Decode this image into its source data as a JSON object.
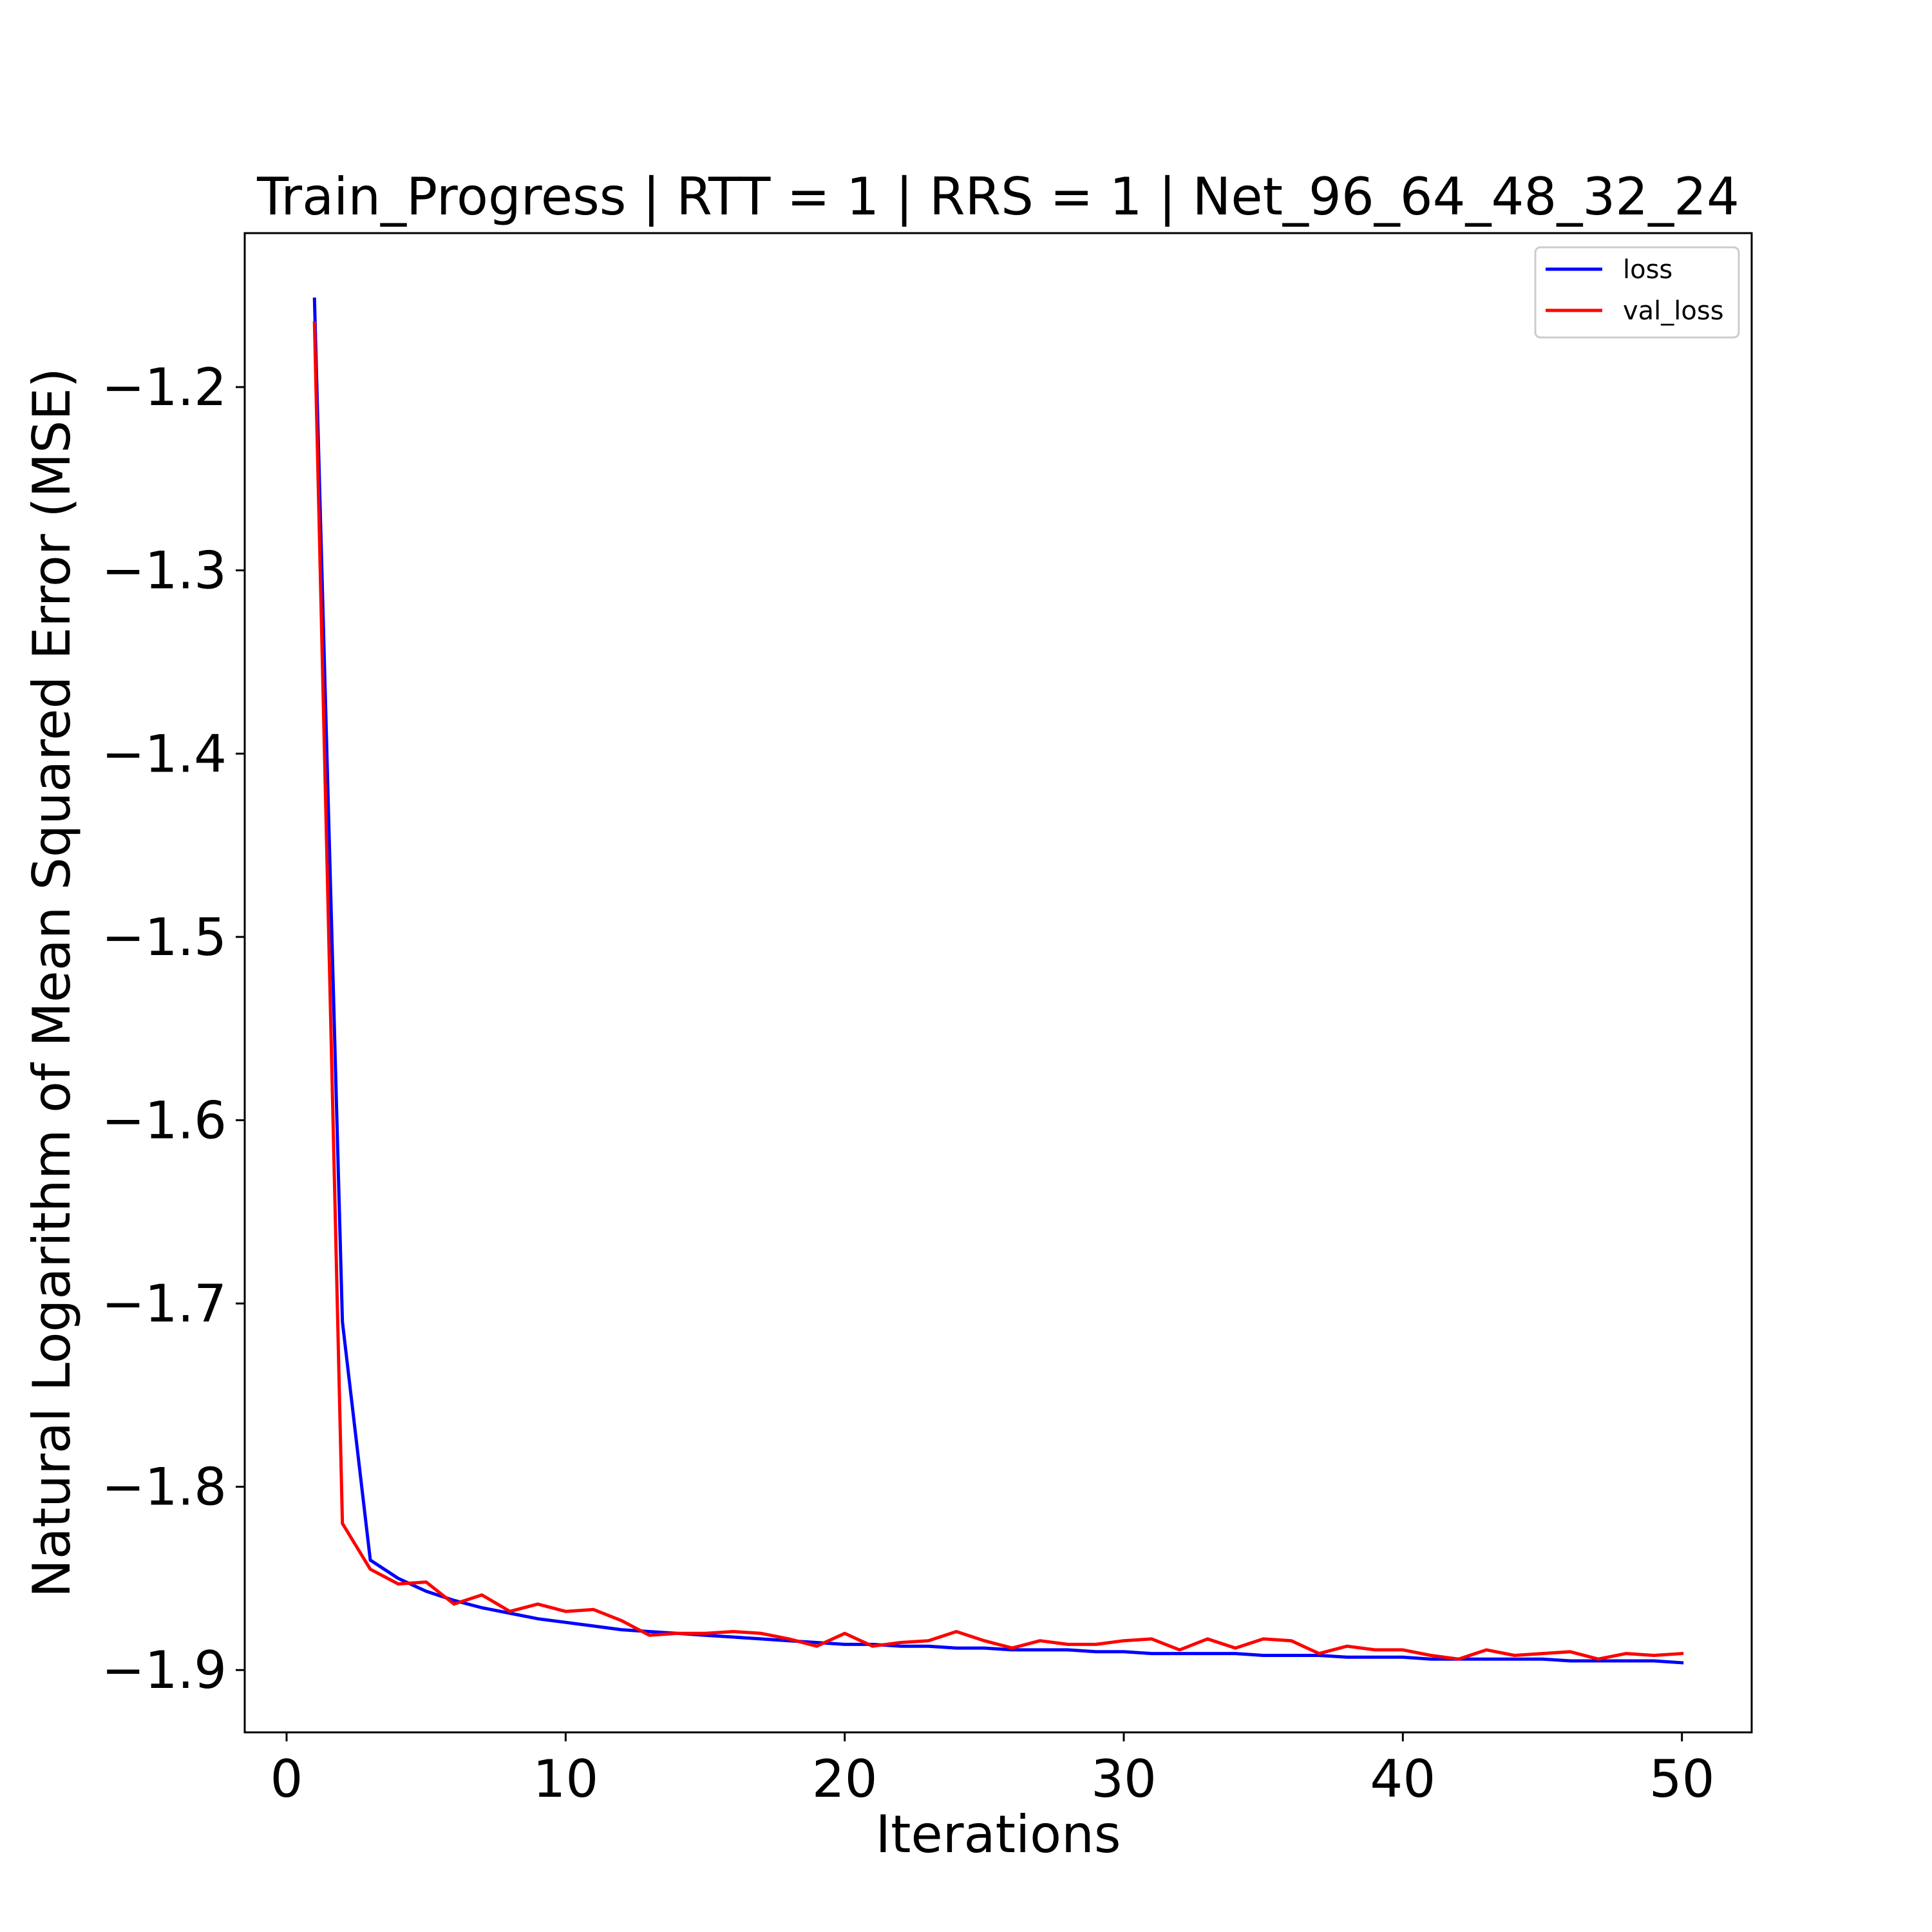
{
  "chart_data": {
    "type": "line",
    "title": "Train_Progress | RTT = 1 | RRS = 1 | Net_96_64_48_32_24",
    "xlabel": "Iterations",
    "ylabel": "Natural Logarithm of Mean Squared Error (MSE)",
    "xlim": [
      -1.5,
      52.5
    ],
    "ylim": [
      -1.934,
      -1.116
    ],
    "xticks": [
      0,
      10,
      20,
      30,
      40,
      50
    ],
    "xtick_labels": [
      "0",
      "10",
      "20",
      "30",
      "40",
      "50"
    ],
    "yticks": [
      -1.2,
      -1.3,
      -1.4,
      -1.5,
      -1.6,
      -1.7,
      -1.8,
      -1.9
    ],
    "ytick_labels": [
      "−1.2",
      "−1.3",
      "−1.4",
      "−1.5",
      "−1.6",
      "−1.7",
      "−1.8",
      "−1.9"
    ],
    "grid": false,
    "legend_position": "top-right",
    "x": [
      1,
      2,
      3,
      4,
      5,
      6,
      7,
      8,
      9,
      10,
      11,
      12,
      13,
      14,
      15,
      16,
      17,
      18,
      19,
      20,
      21,
      22,
      23,
      24,
      25,
      26,
      27,
      28,
      29,
      30,
      31,
      32,
      33,
      34,
      35,
      36,
      37,
      38,
      39,
      40,
      41,
      42,
      43,
      44,
      45,
      46,
      47,
      48,
      49,
      50
    ],
    "series": [
      {
        "name": "loss",
        "color": "#0000ff",
        "values": [
          -1.152,
          -1.71,
          -1.84,
          -1.85,
          -1.857,
          -1.862,
          -1.866,
          -1.869,
          -1.872,
          -1.874,
          -1.876,
          -1.878,
          -1.879,
          -1.88,
          -1.881,
          -1.882,
          -1.883,
          -1.884,
          -1.885,
          -1.886,
          -1.886,
          -1.887,
          -1.887,
          -1.888,
          -1.888,
          -1.889,
          -1.889,
          -1.889,
          -1.89,
          -1.89,
          -1.891,
          -1.891,
          -1.891,
          -1.891,
          -1.892,
          -1.892,
          -1.892,
          -1.893,
          -1.893,
          -1.893,
          -1.894,
          -1.894,
          -1.894,
          -1.894,
          -1.894,
          -1.895,
          -1.895,
          -1.895,
          -1.895,
          -1.896
        ]
      },
      {
        "name": "val_loss",
        "color": "#ff0000",
        "values": [
          -1.165,
          -1.82,
          -1.845,
          -1.853,
          -1.852,
          -1.864,
          -1.859,
          -1.868,
          -1.864,
          -1.868,
          -1.867,
          -1.873,
          -1.881,
          -1.88,
          -1.88,
          -1.879,
          -1.88,
          -1.883,
          -1.887,
          -1.88,
          -1.887,
          -1.885,
          -1.884,
          -1.879,
          -1.884,
          -1.888,
          -1.884,
          -1.886,
          -1.886,
          -1.884,
          -1.883,
          -1.889,
          -1.883,
          -1.888,
          -1.883,
          -1.884,
          -1.891,
          -1.887,
          -1.889,
          -1.889,
          -1.892,
          -1.894,
          -1.889,
          -1.892,
          -1.891,
          -1.89,
          -1.894,
          -1.891,
          -1.892,
          -1.891
        ]
      }
    ]
  }
}
